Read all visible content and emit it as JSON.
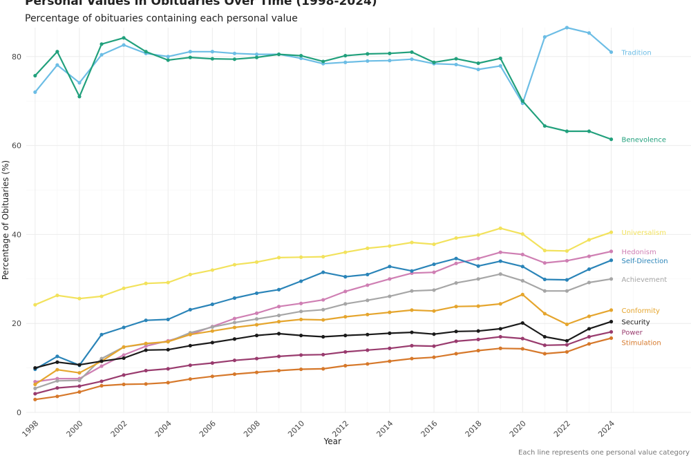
{
  "chart_data": {
    "type": "line",
    "title": "Personal Values in Obituaries Over Time (1998-2024)",
    "subtitle": "Percentage of obituaries containing each personal value",
    "xlabel": "Year",
    "ylabel": "Percentage of Obituaries (%)",
    "caption": "Each line represents one personal value category",
    "xlim": [
      1997.6,
      2027.6
    ],
    "ylim": [
      0,
      86.5
    ],
    "x_ticks": [
      1998,
      2000,
      2002,
      2004,
      2006,
      2008,
      2010,
      2012,
      2014,
      2016,
      2018,
      2020,
      2022,
      2024
    ],
    "y_ticks": [
      0,
      20,
      40,
      60,
      80
    ],
    "grid": true,
    "legend": "direct labels at line ends (right)",
    "x": [
      1998,
      1999,
      2000,
      2001,
      2002,
      2003,
      2004,
      2005,
      2006,
      2007,
      2008,
      2009,
      2010,
      2011,
      2012,
      2013,
      2014,
      2015,
      2016,
      2017,
      2018,
      2019,
      2020,
      2021,
      2022,
      2023,
      2024
    ],
    "series": [
      {
        "name": "Tradition",
        "color": "#6cbde5",
        "label_offset": 0,
        "values": [
          72.0,
          78.1,
          74.1,
          80.4,
          82.6,
          80.7,
          80.0,
          81.1,
          81.1,
          80.7,
          80.5,
          80.5,
          79.6,
          78.4,
          78.7,
          79.0,
          79.1,
          79.4,
          78.4,
          78.2,
          77.1,
          77.9,
          69.5,
          84.4,
          86.5,
          85.3,
          81.0
        ]
      },
      {
        "name": "Benevolence",
        "color": "#21a07c",
        "label_offset": 0,
        "values": [
          75.7,
          81.1,
          71.0,
          82.8,
          84.2,
          81.1,
          79.2,
          79.8,
          79.5,
          79.4,
          79.8,
          80.5,
          80.2,
          78.9,
          80.2,
          80.6,
          80.7,
          81.0,
          78.7,
          79.5,
          78.5,
          79.6,
          70.0,
          64.4,
          63.2,
          63.2,
          61.4
        ]
      },
      {
        "name": "Universalism",
        "color": "#f2e25c",
        "label_offset": 0,
        "values": [
          24.2,
          26.3,
          25.6,
          26.1,
          27.9,
          29.0,
          29.2,
          31.0,
          32.0,
          33.2,
          33.8,
          34.8,
          34.9,
          35.0,
          36.0,
          36.9,
          37.4,
          38.2,
          37.8,
          39.2,
          39.9,
          41.4,
          40.1,
          36.4,
          36.3,
          38.8,
          40.5
        ]
      },
      {
        "name": "Hedonism",
        "color": "#cf7fb3",
        "label_offset": 0,
        "values": [
          6.9,
          7.6,
          7.6,
          10.4,
          12.9,
          14.9,
          16.1,
          17.5,
          19.3,
          21.1,
          22.3,
          23.8,
          24.5,
          25.3,
          27.2,
          28.6,
          30.0,
          31.3,
          31.5,
          33.5,
          34.6,
          36.0,
          35.5,
          33.6,
          34.1,
          35.1,
          36.2
        ]
      },
      {
        "name": "Self-Direction",
        "color": "#2a84b8",
        "label_offset": 0,
        "values": [
          9.7,
          12.6,
          10.6,
          17.5,
          19.1,
          20.7,
          20.9,
          23.1,
          24.3,
          25.7,
          26.8,
          27.6,
          29.5,
          31.5,
          30.5,
          31.0,
          32.8,
          31.8,
          33.3,
          34.6,
          32.9,
          34.0,
          32.8,
          29.9,
          29.8,
          32.2,
          34.2
        ]
      },
      {
        "name": "Achievement",
        "color": "#a6a6a6",
        "label_offset": 0,
        "values": [
          5.4,
          7.1,
          7.2,
          12.1,
          14.7,
          15.4,
          15.9,
          17.9,
          19.2,
          20.2,
          21.0,
          21.8,
          22.7,
          23.1,
          24.4,
          25.2,
          26.1,
          27.3,
          27.5,
          29.1,
          30.0,
          31.1,
          29.6,
          27.3,
          27.3,
          29.2,
          30.0
        ]
      },
      {
        "name": "Conformity",
        "color": "#e5a52d",
        "label_offset": 0,
        "values": [
          6.3,
          9.6,
          8.9,
          11.5,
          14.7,
          15.5,
          15.9,
          17.5,
          18.3,
          19.1,
          19.7,
          20.4,
          20.9,
          20.8,
          21.5,
          22.0,
          22.5,
          23.0,
          22.8,
          23.8,
          23.9,
          24.4,
          26.5,
          22.2,
          19.8,
          21.6,
          23.0
        ]
      },
      {
        "name": "Security",
        "color": "#1a1a1a",
        "label_offset": 0,
        "values": [
          10.0,
          11.3,
          10.7,
          11.5,
          12.2,
          14.0,
          14.1,
          15.0,
          15.7,
          16.5,
          17.3,
          17.7,
          17.3,
          17.0,
          17.3,
          17.5,
          17.8,
          18.0,
          17.6,
          18.2,
          18.3,
          18.8,
          20.1,
          17.0,
          16.1,
          18.8,
          20.4
        ]
      },
      {
        "name": "Power",
        "color": "#993b6e",
        "label_offset": 0,
        "values": [
          4.2,
          5.5,
          5.9,
          7.0,
          8.4,
          9.4,
          9.8,
          10.6,
          11.1,
          11.7,
          12.1,
          12.6,
          12.9,
          13.0,
          13.6,
          14.0,
          14.4,
          15.0,
          14.9,
          16.0,
          16.4,
          17.0,
          16.6,
          15.1,
          15.2,
          17.0,
          18.1
        ]
      },
      {
        "name": "Stimulation",
        "color": "#d6782a",
        "label_offset": 0.9,
        "values": [
          2.9,
          3.6,
          4.6,
          6.0,
          6.3,
          6.4,
          6.7,
          7.5,
          8.1,
          8.6,
          9.0,
          9.4,
          9.7,
          9.8,
          10.5,
          10.9,
          11.5,
          12.1,
          12.4,
          13.2,
          13.9,
          14.4,
          14.3,
          13.2,
          13.6,
          15.4,
          16.7
        ]
      }
    ]
  }
}
